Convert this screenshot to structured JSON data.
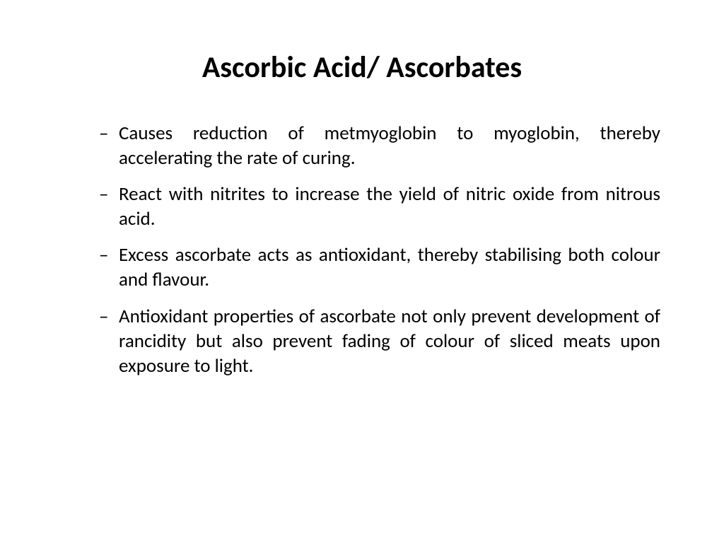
{
  "slide": {
    "title": "Ascorbic Acid/ Ascorbates",
    "background_color": "#ffffff",
    "text_color": "#000000",
    "title_fontsize": 42,
    "body_fontsize": 27,
    "bullets": [
      "Causes reduction of metmyoglobin to myoglobin, thereby accelerating the rate of curing.",
      "React with nitrites to increase the yield of nitric oxide from nitrous acid.",
      "Excess ascorbate acts as antioxidant, thereby stabilising both colour and flavour.",
      "Antioxidant properties of ascorbate not only prevent development of rancidity but also prevent fading of colour of sliced meats upon exposure to light."
    ]
  }
}
